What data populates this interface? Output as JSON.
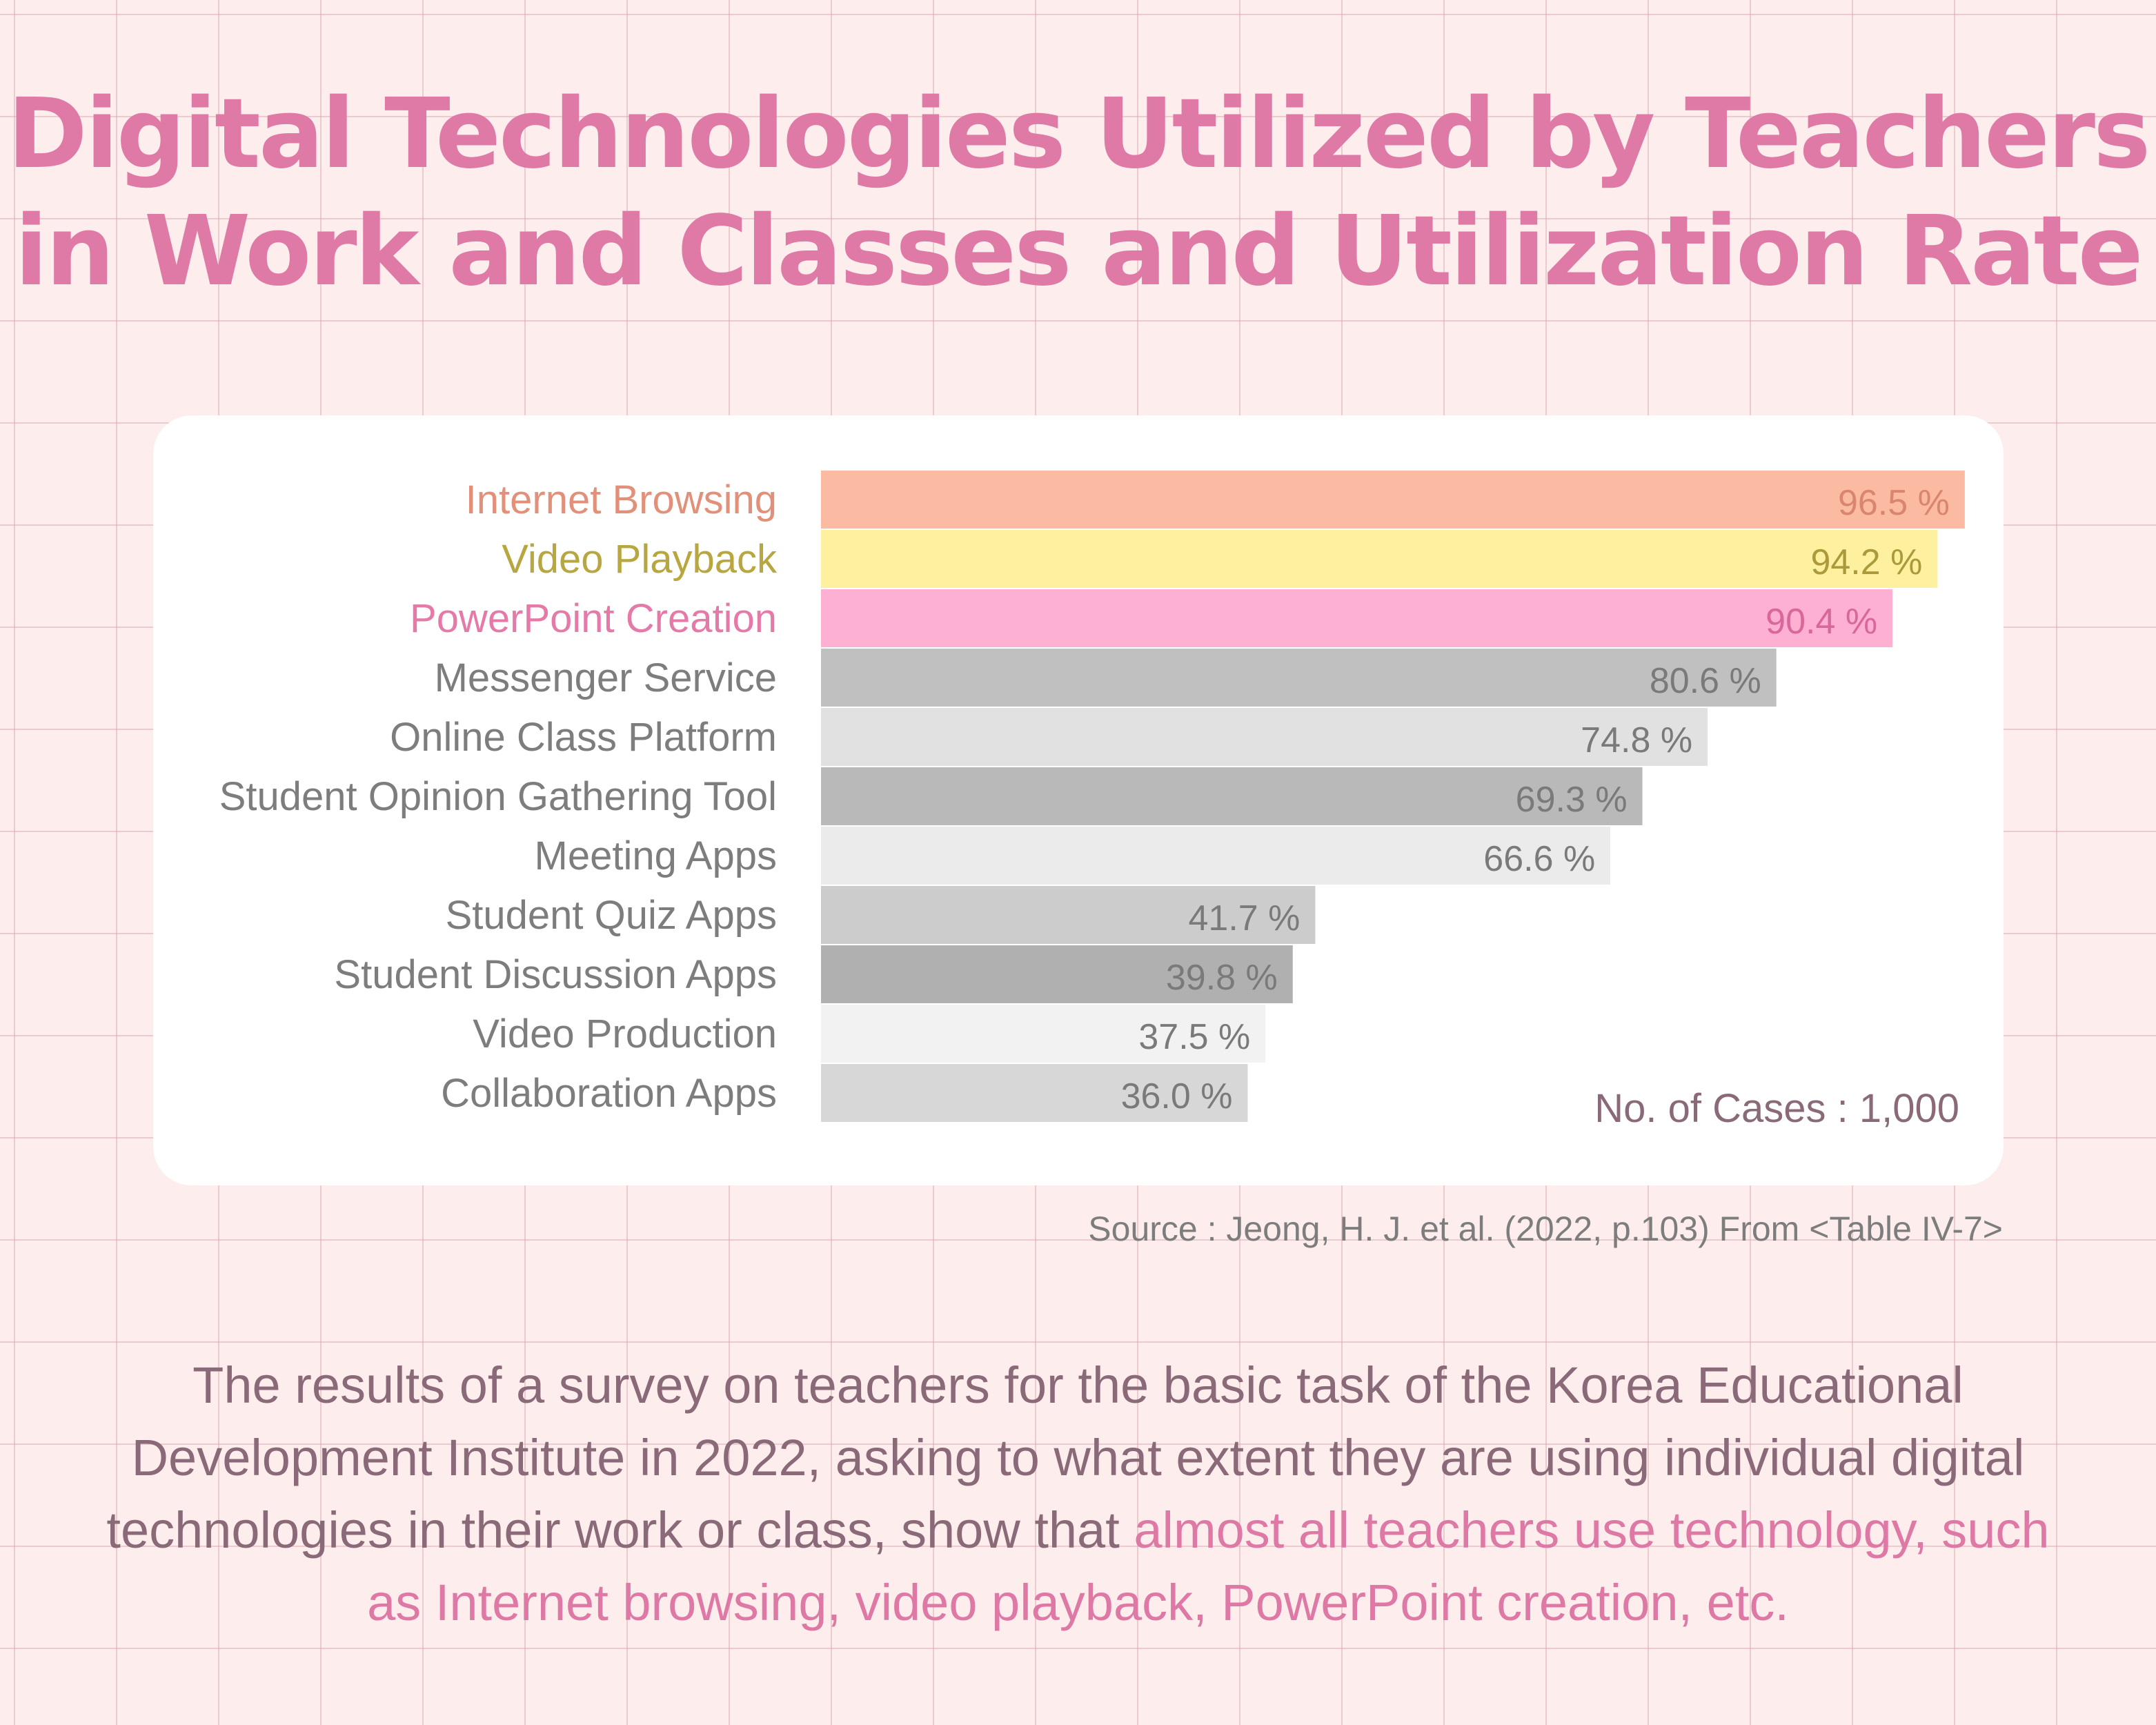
{
  "title": {
    "line1": "Digital Technologies Utilized by Teachers",
    "line2": "in Work and Classes and Utilization Rate"
  },
  "chart_data": {
    "type": "bar",
    "orientation": "horizontal",
    "categories": [
      "Internet Browsing",
      "Video Playback",
      "PowerPoint Creation",
      "Messenger Service",
      "Online Class Platform",
      "Student Opinion Gathering Tool",
      "Meeting Apps",
      "Student Quiz Apps",
      "Student Discussion Apps",
      "Video Production",
      "Collaboration Apps"
    ],
    "values": [
      96.5,
      94.2,
      90.4,
      80.6,
      74.8,
      69.3,
      66.6,
      41.7,
      39.8,
      37.5,
      36.0
    ],
    "value_labels": [
      "96.5 %",
      "94.2 %",
      "90.4 %",
      "80.6 %",
      "74.8 %",
      "69.3 %",
      "66.6 %",
      "41.7 %",
      "39.8 %",
      "37.5 %",
      "36.0 %"
    ],
    "unit": "%",
    "xlim": [
      0,
      100
    ],
    "grid": false,
    "legend": "none",
    "bar_colors": [
      "#fbbba3",
      "#fdf09e",
      "#fdb0d2",
      "#c0c0c0",
      "#e1e1e1",
      "#b9b9b9",
      "#ebebeb",
      "#cccccc",
      "#b0b0b0",
      "#f2f2f2",
      "#d7d7d7"
    ],
    "label_colors": [
      "#e2907a",
      "#b8a640",
      "#e57aa8",
      "#7d7d7d",
      "#7d7d7d",
      "#7d7d7d",
      "#7d7d7d",
      "#7d7d7d",
      "#7d7d7d",
      "#7d7d7d",
      "#7d7d7d"
    ],
    "value_colors": [
      "#d9856f",
      "#aa9a3c",
      "#d8679a",
      "#7a7a7a",
      "#7a7a7a",
      "#7a7a7a",
      "#7a7a7a",
      "#7a7a7a",
      "#7a7a7a",
      "#7a7a7a",
      "#7a7a7a"
    ],
    "note": "No. of Cases : 1,000",
    "note_color": "#8a6a78"
  },
  "source": "Source : Jeong, H. J. et al. (2022, p.103) From <Table IV-7>",
  "description": {
    "plain": "The results of a survey on teachers for the basic task of the Korea Educational Development Institute in 2022, asking to what extent they are using individual digital technologies in their work or class, show that ",
    "highlight": "almost all teachers use technology, such as Internet browsing, video playback, PowerPoint creation, etc."
  }
}
